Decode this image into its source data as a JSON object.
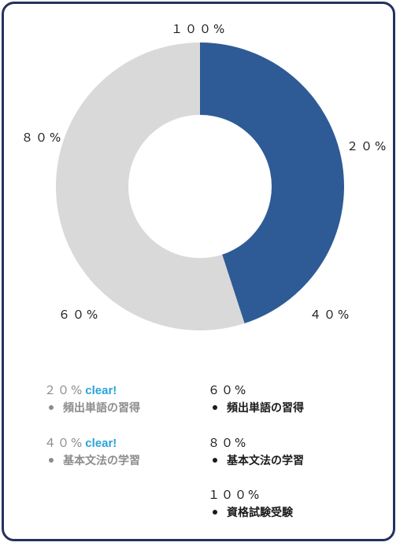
{
  "chart_data": {
    "type": "pie",
    "donut": true,
    "progress": 45,
    "max": 100,
    "colors": {
      "done": "#2e5b96",
      "remaining": "#d9d9d9"
    },
    "tick_labels": [
      "１００%",
      "２０%",
      "４０%",
      "６０%",
      "８０%"
    ]
  },
  "milestones": {
    "clear_color": "#29a3d8",
    "done": [
      {
        "label": "２０%",
        "status": "clear!",
        "item": "頻出単語の習得"
      },
      {
        "label": "４０%",
        "status": "clear!",
        "item": "基本文法の学習"
      }
    ],
    "todo": [
      {
        "label": "６０%",
        "item": "頻出単語の習得"
      },
      {
        "label": "８０%",
        "item": "基本文法の学習"
      },
      {
        "label": "１００%",
        "item": "資格試験受験"
      }
    ]
  }
}
